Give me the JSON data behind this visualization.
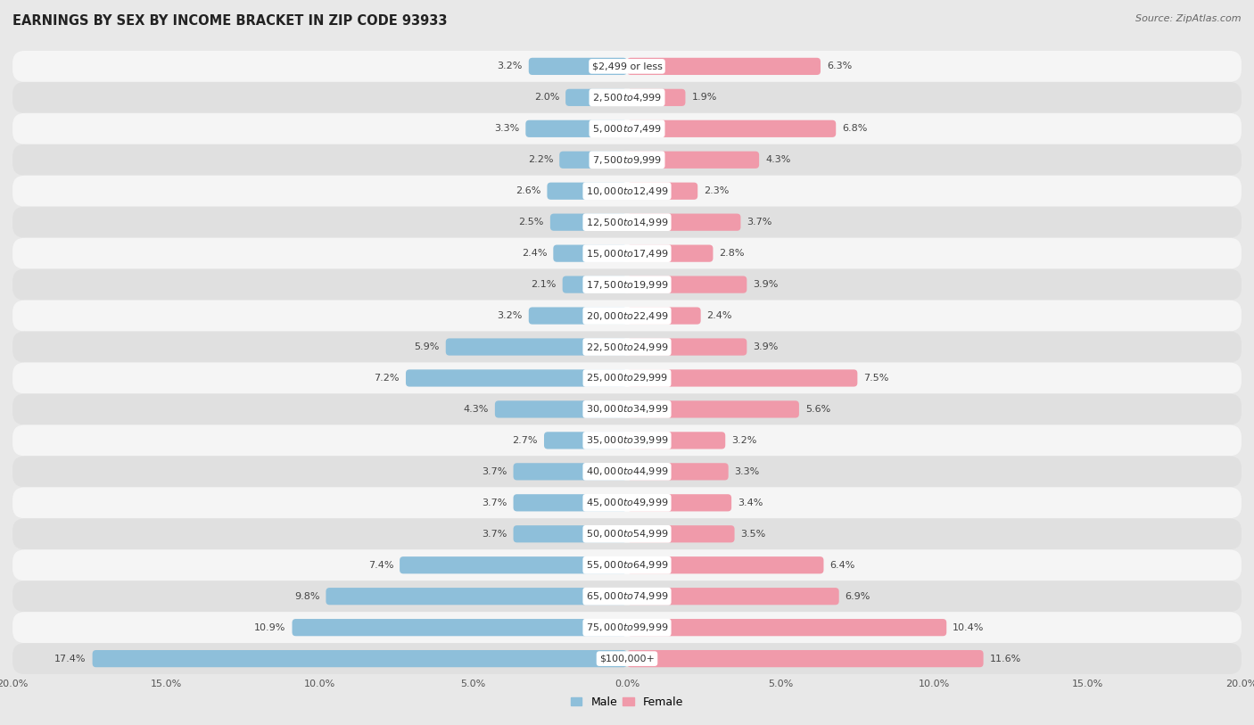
{
  "title": "EARNINGS BY SEX BY INCOME BRACKET IN ZIP CODE 93933",
  "source": "Source: ZipAtlas.com",
  "categories": [
    "$2,499 or less",
    "$2,500 to $4,999",
    "$5,000 to $7,499",
    "$7,500 to $9,999",
    "$10,000 to $12,499",
    "$12,500 to $14,999",
    "$15,000 to $17,499",
    "$17,500 to $19,999",
    "$20,000 to $22,499",
    "$22,500 to $24,999",
    "$25,000 to $29,999",
    "$30,000 to $34,999",
    "$35,000 to $39,999",
    "$40,000 to $44,999",
    "$45,000 to $49,999",
    "$50,000 to $54,999",
    "$55,000 to $64,999",
    "$65,000 to $74,999",
    "$75,000 to $99,999",
    "$100,000+"
  ],
  "male_values": [
    3.2,
    2.0,
    3.3,
    2.2,
    2.6,
    2.5,
    2.4,
    2.1,
    3.2,
    5.9,
    7.2,
    4.3,
    2.7,
    3.7,
    3.7,
    3.7,
    7.4,
    9.8,
    10.9,
    17.4
  ],
  "female_values": [
    6.3,
    1.9,
    6.8,
    4.3,
    2.3,
    3.7,
    2.8,
    3.9,
    2.4,
    3.9,
    7.5,
    5.6,
    3.2,
    3.3,
    3.4,
    3.5,
    6.4,
    6.9,
    10.4,
    11.6
  ],
  "male_color": "#8ebfda",
  "female_color": "#f09aaa",
  "background_color": "#e8e8e8",
  "row_white": "#f5f5f5",
  "row_gray": "#e0e0e0",
  "xlim": 20.0,
  "bar_height": 0.55,
  "title_fontsize": 10.5,
  "label_fontsize": 8,
  "category_fontsize": 8,
  "source_fontsize": 8,
  "legend_fontsize": 9,
  "tick_fontsize": 8
}
